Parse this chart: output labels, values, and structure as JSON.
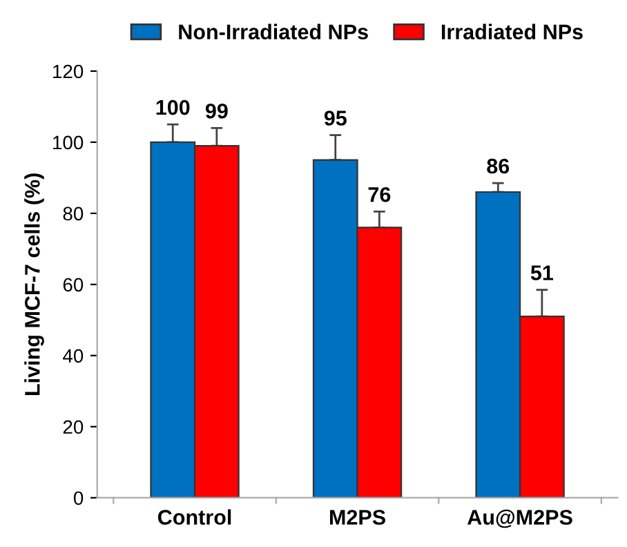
{
  "chart_data": {
    "type": "bar",
    "ylabel": "Living MCF-7 cells (%)",
    "categories": [
      "Control",
      "M2PS",
      "Au@M2PS"
    ],
    "series": [
      {
        "name": "Non-Irradiated NPs",
        "color": "#0070c0",
        "values": [
          100,
          95,
          86
        ],
        "errors": [
          [
            100,
            105
          ],
          [
            95,
            102
          ],
          [
            86,
            88.5
          ]
        ]
      },
      {
        "name": "Irradiated NPs",
        "color": "#ff0000",
        "values": [
          99,
          76,
          51
        ],
        "errors": [
          [
            99,
            104
          ],
          [
            76,
            80.5
          ],
          [
            51,
            58.5
          ]
        ]
      }
    ],
    "ylim": [
      0,
      120
    ],
    "yticks": [
      0,
      20,
      40,
      60,
      80,
      100,
      120
    ],
    "grid": false,
    "legend": "top",
    "data_labels": true
  }
}
